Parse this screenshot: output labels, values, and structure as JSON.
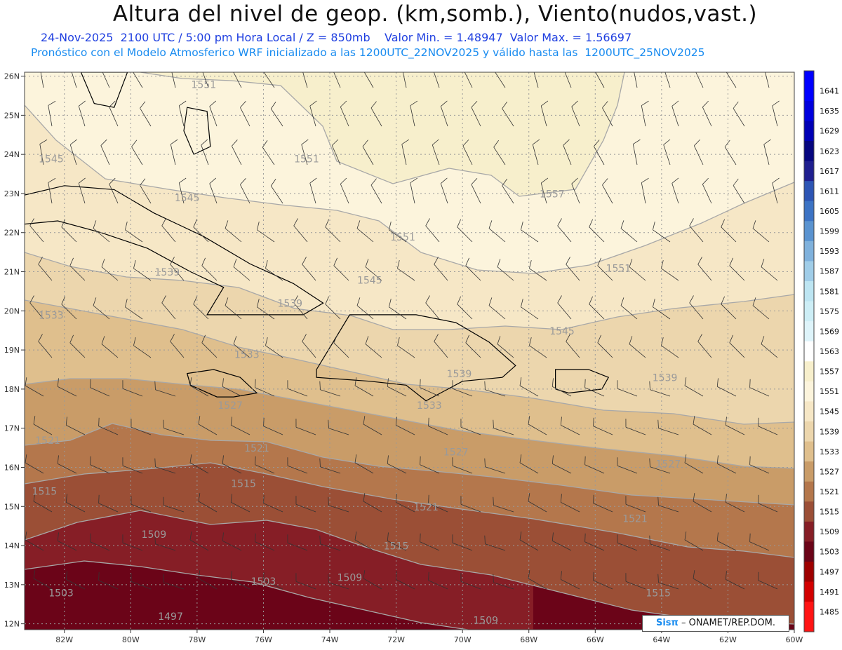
{
  "header": {
    "title": "Altura del nivel de geop. (km,somb.), Viento(nudos,vast.)",
    "line1": "24-Nov-2025  2100 UTC / 5:00 pm Hora Local / Z = 850mb    Valor Min. = 1.48947  Valor Max. = 1.56697",
    "line2": "Pronóstico con el Modelo Atmosferico WRF inicializado a las 1200UTC_22NOV2025 y válido hasta las  1200UTC_25NOV2025"
  },
  "map": {
    "lon_labels": [
      "82W",
      "80W",
      "78W",
      "76W",
      "74W",
      "72W",
      "70W",
      "68W",
      "66W",
      "64W",
      "62W",
      "60W"
    ],
    "lat_labels": [
      "26N",
      "25N",
      "24N",
      "23N",
      "22N",
      "21N",
      "20N",
      "19N",
      "18N",
      "17N",
      "16N",
      "15N",
      "14N",
      "13N",
      "12N"
    ],
    "contour_labels": [
      {
        "text": "1551",
        "lon": -77.8,
        "lat": 25.7
      },
      {
        "text": "1545",
        "lon": -82.4,
        "lat": 23.8
      },
      {
        "text": "1551",
        "lon": -74.7,
        "lat": 23.8
      },
      {
        "text": "1545",
        "lon": -78.3,
        "lat": 22.8
      },
      {
        "text": "1557",
        "lon": -67.3,
        "lat": 22.9
      },
      {
        "text": "1551",
        "lon": -71.8,
        "lat": 21.8
      },
      {
        "text": "1551",
        "lon": -65.3,
        "lat": 21.0
      },
      {
        "text": "1539",
        "lon": -78.9,
        "lat": 20.9
      },
      {
        "text": "1545",
        "lon": -72.8,
        "lat": 20.7
      },
      {
        "text": "1539",
        "lon": -75.2,
        "lat": 20.1
      },
      {
        "text": "1533",
        "lon": -82.4,
        "lat": 19.8
      },
      {
        "text": "1545",
        "lon": -67.0,
        "lat": 19.4
      },
      {
        "text": "1533",
        "lon": -76.5,
        "lat": 18.8
      },
      {
        "text": "1539",
        "lon": -70.1,
        "lat": 18.3
      },
      {
        "text": "1539",
        "lon": -63.9,
        "lat": 18.2
      },
      {
        "text": "1527",
        "lon": -77.0,
        "lat": 17.5
      },
      {
        "text": "1533",
        "lon": -71.0,
        "lat": 17.5
      },
      {
        "text": "1521",
        "lon": -82.5,
        "lat": 16.6
      },
      {
        "text": "1521",
        "lon": -76.2,
        "lat": 16.4
      },
      {
        "text": "1527",
        "lon": -70.2,
        "lat": 16.3
      },
      {
        "text": "1527",
        "lon": -63.8,
        "lat": 16.0
      },
      {
        "text": "1515",
        "lon": -82.6,
        "lat": 15.3
      },
      {
        "text": "1515",
        "lon": -76.6,
        "lat": 15.5
      },
      {
        "text": "1521",
        "lon": -71.1,
        "lat": 14.9
      },
      {
        "text": "1521",
        "lon": -64.8,
        "lat": 14.6
      },
      {
        "text": "1509",
        "lon": -79.3,
        "lat": 14.2
      },
      {
        "text": "1515",
        "lon": -72.0,
        "lat": 13.9
      },
      {
        "text": "1509",
        "lon": -73.4,
        "lat": 13.1
      },
      {
        "text": "1503",
        "lon": -76.0,
        "lat": 13.0
      },
      {
        "text": "1503",
        "lon": -82.1,
        "lat": 12.7
      },
      {
        "text": "1515",
        "lon": -64.1,
        "lat": 12.7
      },
      {
        "text": "1497",
        "lon": -78.8,
        "lat": 12.1
      },
      {
        "text": "1509",
        "lon": -69.3,
        "lat": 12.0
      }
    ]
  },
  "colorbar": {
    "levels": [
      "1641",
      "1635",
      "1629",
      "1623",
      "1617",
      "1611",
      "1605",
      "1599",
      "1593",
      "1587",
      "1581",
      "1575",
      "1569",
      "1563",
      "1557",
      "1551",
      "1545",
      "1539",
      "1533",
      "1527",
      "1521",
      "1515",
      "1509",
      "1503",
      "1497",
      "1491",
      "1485"
    ],
    "colors": [
      "#0000ff",
      "#0000dd",
      "#0000b5",
      "#06067f",
      "#1f1f8f",
      "#2d55b4",
      "#3c73c4",
      "#5a93d0",
      "#7fb1dc",
      "#a0cde8",
      "#bde5f2",
      "#cdeef6",
      "#def4fa",
      "#ffffff",
      "#f7efcc",
      "#fcf4dc",
      "#f6e7c6",
      "#ecd6ad",
      "#dfbf8d",
      "#c99c68",
      "#b4774c",
      "#9b4f36",
      "#861e26",
      "#6b0418",
      "#9e0000",
      "#d20000",
      "#ff1414"
    ]
  },
  "credit": {
    "logo": "Sisπ",
    "text": "– ONAMET/REP.DOM."
  }
}
